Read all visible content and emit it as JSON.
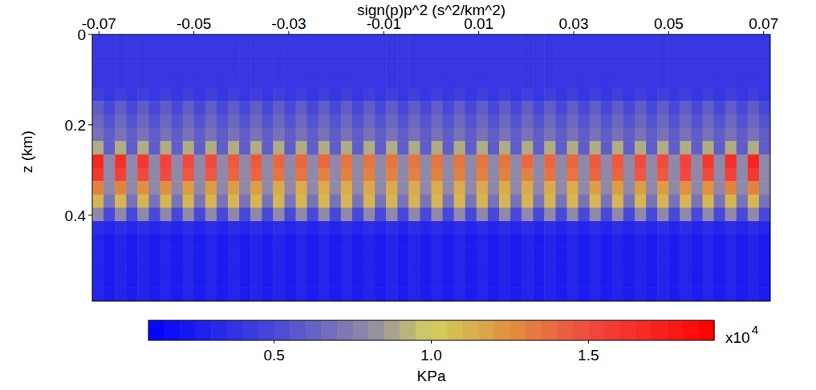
{
  "chart_data": {
    "type": "heatmap",
    "x_label": "sign(p)p^2 (s^2/km^2)",
    "y_label": "z (km)",
    "xlim": [
      -0.0714,
      0.0714
    ],
    "xticks": [
      -0.07,
      -0.05,
      -0.03,
      -0.01,
      0.01,
      0.03,
      0.05,
      0.07
    ],
    "ylim": [
      0,
      0.59
    ],
    "yticks": [
      0,
      0.2,
      0.4
    ],
    "colorbar": {
      "range": [
        0.1,
        1.9
      ],
      "ticks": [
        0.5,
        {
          "value": 1,
          "label": "1.0"
        },
        1.5
      ],
      "label": "KPa",
      "multiplier_base": "x10",
      "multiplier_exponent": "4"
    },
    "cells": [
      [
        0.4,
        0.4,
        0.4,
        0.4,
        0.4,
        0.4,
        0.4,
        0.4,
        0.4,
        0.4,
        0.4,
        0.4,
        0.4,
        0.4,
        0.4,
        0.4,
        0.4,
        0.4,
        0.4,
        0.4,
        0.4,
        0.4,
        0.4,
        0.4,
        0.4,
        0.4,
        0.4,
        0.4,
        0.4,
        0.4,
        0.4,
        0.4,
        0.4,
        0.4,
        0.4,
        0.4,
        0.4,
        0.4,
        0.4,
        0.4,
        0.4,
        0.4,
        0.4,
        0.4,
        0.4,
        0.4,
        0.4,
        0.4,
        0.4,
        0.4,
        0.4,
        0.4,
        0.4,
        0.4,
        0.4,
        0.4,
        0.4,
        0.4,
        0.4,
        0.4
      ],
      [
        0.4,
        0.4,
        0.4,
        0.4,
        0.4,
        0.4,
        0.4,
        0.4,
        0.4,
        0.4,
        0.4,
        0.4,
        0.4,
        0.4,
        0.4,
        0.4,
        0.4,
        0.4,
        0.4,
        0.4,
        0.4,
        0.4,
        0.4,
        0.4,
        0.4,
        0.4,
        0.4,
        0.4,
        0.4,
        0.4,
        0.4,
        0.4,
        0.4,
        0.4,
        0.4,
        0.4,
        0.4,
        0.4,
        0.4,
        0.4,
        0.4,
        0.4,
        0.4,
        0.4,
        0.4,
        0.4,
        0.4,
        0.4,
        0.4,
        0.4,
        0.4,
        0.4,
        0.4,
        0.4,
        0.4,
        0.4,
        0.4,
        0.4,
        0.4,
        0.4
      ],
      [
        0.4,
        0.4,
        0.4,
        0.4,
        0.4,
        0.4,
        0.4,
        0.4,
        0.4,
        0.4,
        0.4,
        0.4,
        0.4,
        0.4,
        0.4,
        0.4,
        0.4,
        0.4,
        0.4,
        0.4,
        0.4,
        0.4,
        0.4,
        0.4,
        0.4,
        0.4,
        0.4,
        0.4,
        0.4,
        0.4,
        0.4,
        0.4,
        0.4,
        0.4,
        0.4,
        0.4,
        0.4,
        0.4,
        0.4,
        0.4,
        0.4,
        0.4,
        0.4,
        0.4,
        0.4,
        0.4,
        0.4,
        0.4,
        0.4,
        0.4,
        0.4,
        0.4,
        0.4,
        0.4,
        0.4,
        0.4,
        0.4,
        0.4,
        0.4,
        0.4
      ],
      [
        0.4,
        0.4,
        0.4,
        0.4,
        0.4,
        0.4,
        0.4,
        0.4,
        0.4,
        0.4,
        0.4,
        0.4,
        0.4,
        0.4,
        0.4,
        0.4,
        0.4,
        0.4,
        0.4,
        0.4,
        0.4,
        0.4,
        0.4,
        0.4,
        0.4,
        0.4,
        0.4,
        0.4,
        0.4,
        0.4,
        0.4,
        0.4,
        0.4,
        0.4,
        0.4,
        0.4,
        0.4,
        0.4,
        0.4,
        0.4,
        0.4,
        0.4,
        0.4,
        0.4,
        0.4,
        0.4,
        0.4,
        0.4,
        0.4,
        0.4,
        0.4,
        0.4,
        0.4,
        0.4,
        0.4,
        0.4,
        0.4,
        0.4,
        0.4,
        0.4
      ],
      [
        0.45,
        0.4,
        0.45,
        0.4,
        0.45,
        0.4,
        0.45,
        0.4,
        0.45,
        0.4,
        0.45,
        0.4,
        0.45,
        0.4,
        0.45,
        0.4,
        0.45,
        0.4,
        0.45,
        0.4,
        0.45,
        0.4,
        0.45,
        0.4,
        0.45,
        0.4,
        0.45,
        0.4,
        0.45,
        0.4,
        0.45,
        0.4,
        0.45,
        0.4,
        0.45,
        0.4,
        0.45,
        0.4,
        0.45,
        0.4,
        0.45,
        0.4,
        0.45,
        0.4,
        0.45,
        0.4,
        0.45,
        0.4,
        0.45,
        0.4,
        0.45,
        0.4,
        0.45,
        0.4,
        0.45,
        0.4,
        0.45,
        0.4,
        0.45,
        0.4
      ],
      [
        0.6,
        0.5,
        0.6,
        0.5,
        0.6,
        0.5,
        0.6,
        0.5,
        0.6,
        0.5,
        0.6,
        0.5,
        0.6,
        0.5,
        0.6,
        0.5,
        0.6,
        0.5,
        0.6,
        0.5,
        0.6,
        0.5,
        0.6,
        0.5,
        0.6,
        0.5,
        0.6,
        0.5,
        0.6,
        0.5,
        0.6,
        0.5,
        0.6,
        0.5,
        0.6,
        0.5,
        0.6,
        0.5,
        0.6,
        0.5,
        0.6,
        0.5,
        0.6,
        0.5,
        0.6,
        0.5,
        0.6,
        0.5,
        0.6,
        0.5,
        0.6,
        0.5,
        0.6,
        0.5,
        0.6,
        0.5,
        0.6,
        0.5,
        0.6,
        0.5
      ],
      [
        0.65,
        0.55,
        0.65,
        0.55,
        0.65,
        0.55,
        0.65,
        0.55,
        0.65,
        0.55,
        0.65,
        0.55,
        0.65,
        0.55,
        0.65,
        0.55,
        0.65,
        0.55,
        0.65,
        0.55,
        0.65,
        0.55,
        0.65,
        0.55,
        0.65,
        0.55,
        0.65,
        0.55,
        0.65,
        0.55,
        0.65,
        0.55,
        0.65,
        0.55,
        0.65,
        0.55,
        0.65,
        0.55,
        0.65,
        0.55,
        0.65,
        0.55,
        0.65,
        0.55,
        0.65,
        0.55,
        0.65,
        0.55,
        0.65,
        0.55,
        0.65,
        0.55,
        0.65,
        0.55,
        0.65,
        0.55,
        0.65,
        0.55,
        0.65,
        0.55
      ],
      [
        0.7,
        0.6,
        0.7,
        0.6,
        0.7,
        0.6,
        0.7,
        0.6,
        0.7,
        0.6,
        0.7,
        0.6,
        0.7,
        0.6,
        0.7,
        0.6,
        0.7,
        0.6,
        0.7,
        0.6,
        0.7,
        0.6,
        0.7,
        0.6,
        0.7,
        0.6,
        0.7,
        0.6,
        0.7,
        0.6,
        0.7,
        0.6,
        0.7,
        0.6,
        0.7,
        0.6,
        0.7,
        0.6,
        0.7,
        0.6,
        0.7,
        0.6,
        0.7,
        0.6,
        0.7,
        0.6,
        0.7,
        0.6,
        0.7,
        0.6,
        0.7,
        0.6,
        0.7,
        0.6,
        0.7,
        0.6,
        0.7,
        0.6,
        0.7,
        0.6
      ],
      [
        0.9,
        0.6,
        0.9,
        0.6,
        0.9,
        0.6,
        0.9,
        0.6,
        0.9,
        0.6,
        0.9,
        0.6,
        0.9,
        0.6,
        0.9,
        0.6,
        0.9,
        0.6,
        0.9,
        0.6,
        0.9,
        0.6,
        0.9,
        0.6,
        0.9,
        0.6,
        0.9,
        0.6,
        0.9,
        0.6,
        0.9,
        0.6,
        0.9,
        0.6,
        0.9,
        0.6,
        0.9,
        0.6,
        0.9,
        0.6,
        0.9,
        0.6,
        0.9,
        0.6,
        0.9,
        0.6,
        0.9,
        0.6,
        0.9,
        0.6,
        0.9,
        0.6,
        0.9,
        0.6,
        0.9,
        0.6,
        0.9,
        0.6,
        0.9,
        0.6
      ],
      [
        1.7,
        0.8,
        1.65,
        0.8,
        1.6,
        0.8,
        1.55,
        0.8,
        1.5,
        0.8,
        1.5,
        0.8,
        1.45,
        0.8,
        1.45,
        0.8,
        1.4,
        0.8,
        1.4,
        0.8,
        1.4,
        0.8,
        1.35,
        0.8,
        1.35,
        0.8,
        1.35,
        0.8,
        1.35,
        0.8,
        1.35,
        0.8,
        1.35,
        0.8,
        1.35,
        0.8,
        1.35,
        0.8,
        1.4,
        0.8,
        1.4,
        0.8,
        1.4,
        0.8,
        1.45,
        0.8,
        1.45,
        0.8,
        1.5,
        0.8,
        1.5,
        0.8,
        1.55,
        0.8,
        1.6,
        0.8,
        1.65,
        0.8,
        1.7,
        0.8
      ],
      [
        1.6,
        0.8,
        1.55,
        0.8,
        1.5,
        0.8,
        1.5,
        0.8,
        1.45,
        0.8,
        1.45,
        0.8,
        1.4,
        0.8,
        1.4,
        0.8,
        1.35,
        0.8,
        1.35,
        0.8,
        1.3,
        0.8,
        1.3,
        0.8,
        1.3,
        0.8,
        1.3,
        0.8,
        1.3,
        0.8,
        1.3,
        0.8,
        1.3,
        0.8,
        1.3,
        0.8,
        1.3,
        0.8,
        1.3,
        0.8,
        1.35,
        0.8,
        1.35,
        0.8,
        1.4,
        0.8,
        1.4,
        0.8,
        1.45,
        0.8,
        1.45,
        0.8,
        1.5,
        0.8,
        1.5,
        0.8,
        1.55,
        0.8,
        1.6,
        0.8
      ],
      [
        1.3,
        0.8,
        1.3,
        0.8,
        1.25,
        0.8,
        1.25,
        0.8,
        1.2,
        0.8,
        1.2,
        0.8,
        1.2,
        0.8,
        1.2,
        0.8,
        1.15,
        0.8,
        1.15,
        0.8,
        1.15,
        0.8,
        1.15,
        0.8,
        1.15,
        0.8,
        1.15,
        0.8,
        1.15,
        0.8,
        1.15,
        0.8,
        1.15,
        0.8,
        1.15,
        0.8,
        1.15,
        0.8,
        1.15,
        0.8,
        1.15,
        0.8,
        1.15,
        0.8,
        1.2,
        0.8,
        1.2,
        0.8,
        1.2,
        0.8,
        1.2,
        0.8,
        1.25,
        0.8,
        1.25,
        0.8,
        1.3,
        0.8,
        1.3,
        0.8
      ],
      [
        1.1,
        0.7,
        1.1,
        0.7,
        1.1,
        0.7,
        1.1,
        0.7,
        1.1,
        0.7,
        1.1,
        0.7,
        1.1,
        0.7,
        1.1,
        0.7,
        1.1,
        0.7,
        1.1,
        0.7,
        1.1,
        0.7,
        1.1,
        0.7,
        1.1,
        0.7,
        1.1,
        0.7,
        1.1,
        0.7,
        1.1,
        0.7,
        1.1,
        0.7,
        1.1,
        0.7,
        1.1,
        0.7,
        1.1,
        0.7,
        1.1,
        0.7,
        1.1,
        0.7,
        1.1,
        0.7,
        1.1,
        0.7,
        1.1,
        0.7,
        1.1,
        0.7,
        1.1,
        0.7,
        1.1,
        0.7,
        1.1,
        0.7,
        1.1,
        0.7
      ],
      [
        0.8,
        0.5,
        0.8,
        0.5,
        0.8,
        0.5,
        0.8,
        0.5,
        0.8,
        0.5,
        0.8,
        0.5,
        0.8,
        0.5,
        0.8,
        0.5,
        0.8,
        0.5,
        0.8,
        0.5,
        0.8,
        0.5,
        0.8,
        0.5,
        0.8,
        0.5,
        0.8,
        0.5,
        0.8,
        0.5,
        0.8,
        0.5,
        0.8,
        0.5,
        0.8,
        0.5,
        0.8,
        0.5,
        0.8,
        0.5,
        0.8,
        0.5,
        0.8,
        0.5,
        0.8,
        0.5,
        0.8,
        0.5,
        0.8,
        0.5,
        0.8,
        0.5,
        0.8,
        0.5,
        0.8,
        0.5,
        0.8,
        0.5,
        0.8,
        0.5
      ],
      [
        0.35,
        0.3,
        0.35,
        0.3,
        0.35,
        0.3,
        0.35,
        0.3,
        0.35,
        0.3,
        0.35,
        0.3,
        0.35,
        0.3,
        0.35,
        0.3,
        0.35,
        0.3,
        0.35,
        0.3,
        0.35,
        0.3,
        0.35,
        0.3,
        0.35,
        0.3,
        0.35,
        0.3,
        0.35,
        0.3,
        0.35,
        0.3,
        0.35,
        0.3,
        0.35,
        0.3,
        0.35,
        0.3,
        0.35,
        0.3,
        0.35,
        0.3,
        0.35,
        0.3,
        0.35,
        0.3,
        0.35,
        0.3,
        0.35,
        0.3,
        0.35,
        0.3,
        0.35,
        0.3,
        0.35,
        0.3,
        0.35,
        0.3,
        0.35,
        0.3
      ],
      [
        0.3,
        0.25,
        0.3,
        0.25,
        0.3,
        0.25,
        0.3,
        0.25,
        0.3,
        0.25,
        0.3,
        0.25,
        0.3,
        0.25,
        0.3,
        0.25,
        0.3,
        0.25,
        0.3,
        0.25,
        0.3,
        0.25,
        0.3,
        0.25,
        0.3,
        0.25,
        0.3,
        0.25,
        0.3,
        0.25,
        0.3,
        0.25,
        0.3,
        0.25,
        0.3,
        0.25,
        0.3,
        0.25,
        0.3,
        0.25,
        0.3,
        0.25,
        0.3,
        0.25,
        0.3,
        0.25,
        0.3,
        0.25,
        0.3,
        0.25,
        0.3,
        0.25,
        0.3,
        0.25,
        0.3,
        0.25,
        0.3,
        0.25,
        0.3,
        0.25
      ],
      [
        0.3,
        0.25,
        0.3,
        0.25,
        0.3,
        0.25,
        0.3,
        0.25,
        0.3,
        0.25,
        0.3,
        0.25,
        0.3,
        0.25,
        0.3,
        0.25,
        0.3,
        0.25,
        0.3,
        0.25,
        0.3,
        0.25,
        0.3,
        0.25,
        0.3,
        0.25,
        0.3,
        0.25,
        0.3,
        0.25,
        0.3,
        0.25,
        0.3,
        0.25,
        0.3,
        0.25,
        0.3,
        0.25,
        0.3,
        0.25,
        0.3,
        0.25,
        0.3,
        0.25,
        0.3,
        0.25,
        0.3,
        0.25,
        0.3,
        0.25,
        0.3,
        0.25,
        0.3,
        0.25,
        0.3,
        0.25,
        0.3,
        0.25,
        0.3,
        0.25
      ],
      [
        0.3,
        0.25,
        0.3,
        0.25,
        0.3,
        0.25,
        0.3,
        0.25,
        0.3,
        0.25,
        0.3,
        0.25,
        0.3,
        0.25,
        0.3,
        0.25,
        0.3,
        0.25,
        0.3,
        0.25,
        0.3,
        0.25,
        0.3,
        0.25,
        0.3,
        0.25,
        0.3,
        0.25,
        0.3,
        0.25,
        0.3,
        0.25,
        0.3,
        0.25,
        0.3,
        0.25,
        0.3,
        0.25,
        0.3,
        0.25,
        0.3,
        0.25,
        0.3,
        0.25,
        0.3,
        0.25,
        0.3,
        0.25,
        0.3,
        0.25,
        0.3,
        0.25,
        0.3,
        0.25,
        0.3,
        0.25,
        0.3,
        0.25,
        0.3,
        0.25
      ],
      [
        0.3,
        0.25,
        0.3,
        0.25,
        0.3,
        0.25,
        0.3,
        0.25,
        0.3,
        0.25,
        0.3,
        0.25,
        0.3,
        0.25,
        0.3,
        0.25,
        0.3,
        0.25,
        0.3,
        0.25,
        0.3,
        0.25,
        0.3,
        0.25,
        0.3,
        0.25,
        0.3,
        0.25,
        0.3,
        0.25,
        0.3,
        0.25,
        0.3,
        0.25,
        0.3,
        0.25,
        0.3,
        0.25,
        0.3,
        0.25,
        0.3,
        0.25,
        0.3,
        0.25,
        0.3,
        0.25,
        0.3,
        0.25,
        0.3,
        0.25,
        0.3,
        0.25,
        0.3,
        0.25,
        0.3,
        0.25,
        0.3,
        0.25,
        0.3,
        0.25
      ],
      [
        0.3,
        0.25,
        0.3,
        0.25,
        0.3,
        0.25,
        0.3,
        0.25,
        0.3,
        0.25,
        0.3,
        0.25,
        0.3,
        0.25,
        0.3,
        0.25,
        0.3,
        0.25,
        0.3,
        0.25,
        0.3,
        0.25,
        0.3,
        0.25,
        0.3,
        0.25,
        0.3,
        0.25,
        0.3,
        0.25,
        0.3,
        0.25,
        0.3,
        0.25,
        0.3,
        0.25,
        0.3,
        0.25,
        0.3,
        0.25,
        0.3,
        0.25,
        0.3,
        0.25,
        0.3,
        0.25,
        0.3,
        0.25,
        0.3,
        0.25,
        0.3,
        0.25,
        0.3,
        0.25,
        0.3,
        0.25,
        0.3,
        0.25,
        0.3,
        0.25
      ]
    ]
  }
}
